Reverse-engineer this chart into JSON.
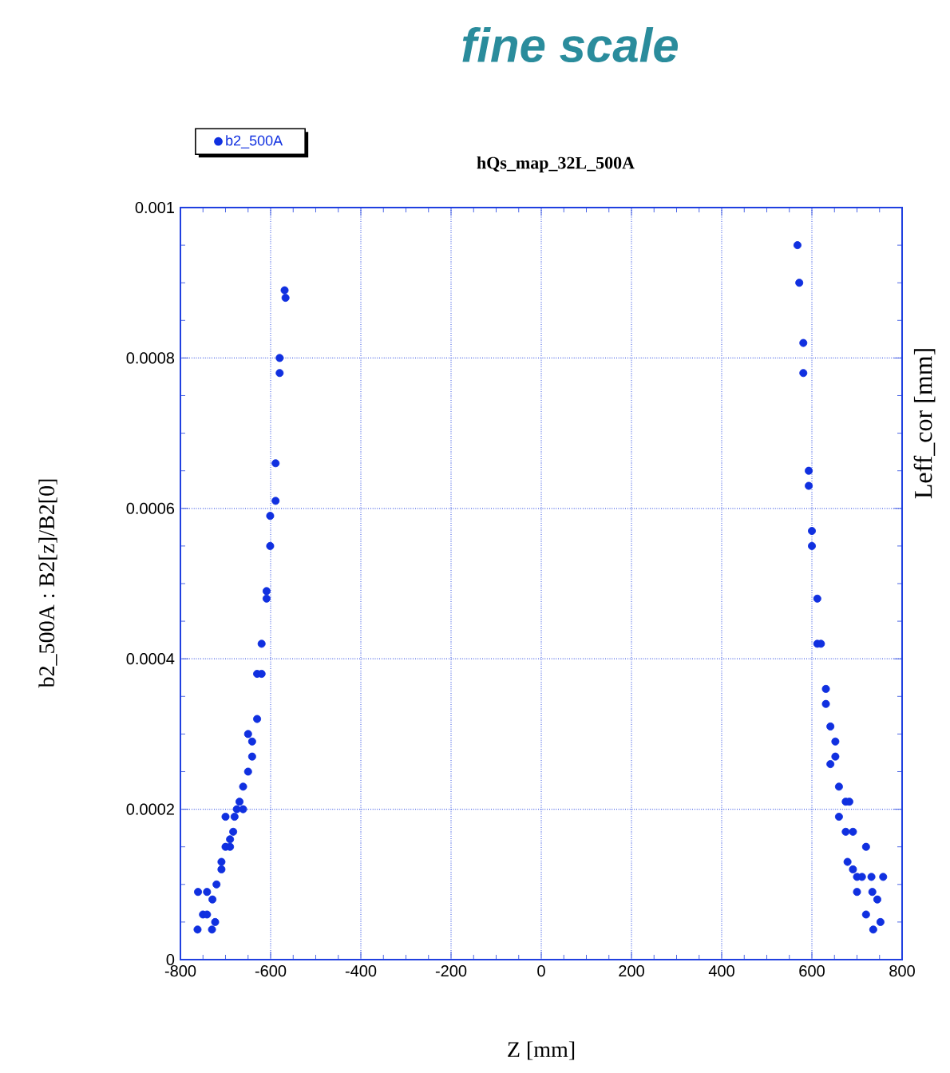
{
  "chart_data": {
    "type": "scatter",
    "title": "fine scale",
    "subtitle": "hQs_map_32L_500A",
    "xlabel": "Z [mm]",
    "ylabel": "b2_500A : B2[z]/B2[0]",
    "y2label": "Leff_cor [mm]",
    "xlim": [
      -800,
      800
    ],
    "xticks": [
      -800,
      -600,
      -400,
      -200,
      0,
      200,
      400,
      600,
      800
    ],
    "ylim": [
      0,
      0.001
    ],
    "yticks": [
      0,
      0.0002,
      0.0004,
      0.0006,
      0.0008,
      0.001
    ],
    "grid": true,
    "legend": "top left",
    "marker": "circle",
    "series": [
      {
        "name": "b2_500A",
        "color": "#1030e0",
        "x": [
          -569,
          -567,
          -580,
          -580,
          -589,
          -589,
          -601,
          -601,
          -609,
          -609,
          -620,
          -630,
          -620,
          -630,
          -650,
          -641,
          -641,
          -650,
          -661,
          -669,
          -661,
          -675,
          -700,
          -680,
          -683,
          -690,
          -700,
          -690,
          -709,
          -709,
          -720,
          -741,
          -761,
          -729,
          -750,
          -741,
          -723,
          -730,
          -762,
          568,
          572,
          581,
          581,
          593,
          593,
          600,
          600,
          612,
          612,
          620,
          631,
          631,
          641,
          652,
          652,
          641,
          660,
          675,
          683,
          660,
          675,
          691,
          720,
          679,
          691,
          700,
          711,
          732,
          700,
          734,
          720,
          736,
          745,
          752,
          758
        ],
        "values": [
          0.00089,
          0.00088,
          0.0008,
          0.00078,
          0.00066,
          0.00061,
          0.00059,
          0.00055,
          0.00049,
          0.00048,
          0.00042,
          0.00038,
          0.00038,
          0.00032,
          0.0003,
          0.00029,
          0.00027,
          0.00025,
          0.00023,
          0.00021,
          0.0002,
          0.0002,
          0.00019,
          0.00019,
          0.00017,
          0.00016,
          0.00015,
          0.00015,
          0.00013,
          0.00012,
          0.0001,
          9e-05,
          9e-05,
          8e-05,
          6e-05,
          6e-05,
          5e-05,
          4e-05,
          4e-05,
          0.00095,
          0.0009,
          0.00082,
          0.00078,
          0.00065,
          0.00063,
          0.00057,
          0.00055,
          0.00048,
          0.00042,
          0.00042,
          0.00036,
          0.00034,
          0.00031,
          0.00029,
          0.00027,
          0.00026,
          0.00023,
          0.00021,
          0.00021,
          0.00019,
          0.00017,
          0.00017,
          0.00015,
          0.00013,
          0.00012,
          0.00011,
          0.00011,
          0.00011,
          9e-05,
          9e-05,
          6e-05,
          4e-05,
          8e-05,
          5e-05,
          0.00011
        ]
      }
    ]
  }
}
